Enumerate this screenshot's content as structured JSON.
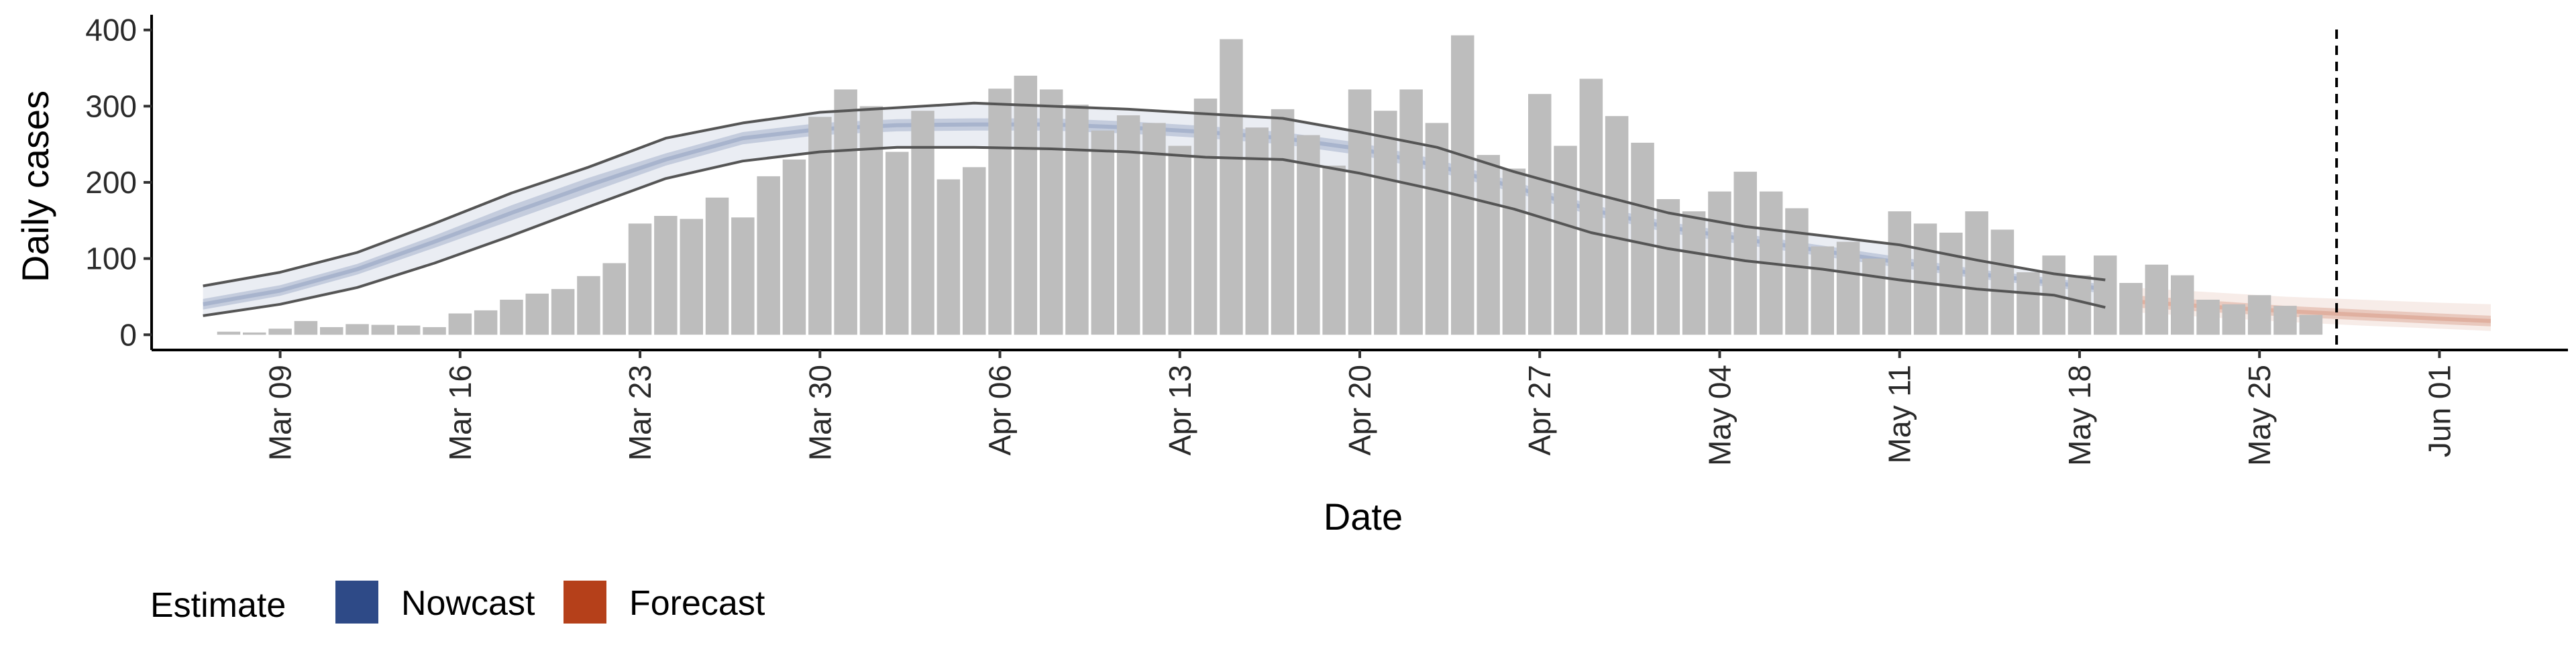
{
  "chart_data": {
    "type": "bar",
    "xlabel": "Date",
    "ylabel": "Daily cases",
    "ylim": [
      -20,
      420
    ],
    "yticks": [
      0,
      100,
      200,
      300,
      400
    ],
    "x_range": [
      "2020-03-04",
      "2020-06-06"
    ],
    "x_ticks": [
      {
        "date": "2020-03-09",
        "label": "Mar 09"
      },
      {
        "date": "2020-03-16",
        "label": "Mar 16"
      },
      {
        "date": "2020-03-23",
        "label": "Mar 23"
      },
      {
        "date": "2020-03-30",
        "label": "Mar 30"
      },
      {
        "date": "2020-04-06",
        "label": "Apr 06"
      },
      {
        "date": "2020-04-13",
        "label": "Apr 13"
      },
      {
        "date": "2020-04-20",
        "label": "Apr 20"
      },
      {
        "date": "2020-04-27",
        "label": "Apr 27"
      },
      {
        "date": "2020-05-04",
        "label": "May 04"
      },
      {
        "date": "2020-05-11",
        "label": "May 11"
      },
      {
        "date": "2020-05-18",
        "label": "May 18"
      },
      {
        "date": "2020-05-25",
        "label": "May 25"
      },
      {
        "date": "2020-06-01",
        "label": "Jun 01"
      }
    ],
    "grid": false,
    "bars": {
      "start_date": "2020-03-07",
      "color": "#bdbdbd",
      "values": [
        4,
        3,
        8,
        18,
        10,
        14,
        13,
        12,
        10,
        28,
        32,
        46,
        54,
        60,
        77,
        94,
        146,
        156,
        152,
        180,
        154,
        208,
        230,
        286,
        322,
        300,
        240,
        294,
        204,
        220,
        323,
        340,
        322,
        302,
        268,
        288,
        278,
        248,
        310,
        388,
        272,
        296,
        262,
        222,
        322,
        294,
        322,
        278,
        393,
        236,
        218,
        316,
        248,
        336,
        287,
        252,
        178,
        162,
        188,
        214,
        188,
        166,
        116,
        122,
        100,
        162,
        146,
        134,
        162,
        138,
        82,
        104,
        78,
        104,
        68,
        92,
        78,
        46,
        40,
        52,
        38,
        26
      ]
    },
    "vline_date": "2020-05-28",
    "series": [
      {
        "name": "Nowcast",
        "color": "#2e4a87",
        "dates": [
          "2020-03-06",
          "2020-03-09",
          "2020-03-12",
          "2020-03-15",
          "2020-03-18",
          "2020-03-21",
          "2020-03-24",
          "2020-03-27",
          "2020-03-30",
          "2020-04-02",
          "2020-04-05",
          "2020-04-08",
          "2020-04-11",
          "2020-04-14",
          "2020-04-17",
          "2020-04-20",
          "2020-04-23",
          "2020-04-26",
          "2020-04-29",
          "2020-05-02",
          "2020-05-05",
          "2020-05-08",
          "2020-05-11",
          "2020-05-14",
          "2020-05-17",
          "2020-05-19"
        ],
        "median": [
          40,
          58,
          86,
          122,
          160,
          196,
          230,
          258,
          270,
          275,
          276,
          276,
          272,
          266,
          258,
          244,
          222,
          194,
          164,
          141,
          125,
          110,
          95,
          80,
          68,
          60
        ],
        "inner_lower": [
          33,
          51,
          79,
          114,
          150,
          186,
          222,
          250,
          262,
          267,
          268,
          268,
          264,
          258,
          250,
          236,
          214,
          187,
          157,
          134,
          118,
          103,
          88,
          74,
          62,
          54
        ],
        "inner_upper": [
          47,
          65,
          93,
          130,
          170,
          206,
          238,
          266,
          278,
          283,
          284,
          284,
          280,
          274,
          266,
          252,
          230,
          201,
          171,
          148,
          132,
          117,
          102,
          86,
          74,
          66
        ],
        "outer_lower": [
          25,
          40,
          62,
          94,
          130,
          168,
          205,
          228,
          240,
          246,
          246,
          244,
          240,
          233,
          230,
          212,
          190,
          165,
          134,
          113,
          97,
          86,
          72,
          60,
          52,
          36
        ],
        "outer_upper": [
          64,
          82,
          108,
          146,
          186,
          220,
          258,
          278,
          292,
          298,
          304,
          300,
          296,
          290,
          284,
          266,
          246,
          214,
          186,
          160,
          142,
          130,
          118,
          98,
          80,
          72
        ]
      },
      {
        "name": "Forecast",
        "color": "#b5401a",
        "dates": [
          "2020-05-20",
          "2020-05-23",
          "2020-05-26",
          "2020-05-29",
          "2020-06-01",
          "2020-06-03"
        ],
        "median": [
          44,
          37,
          31,
          26,
          21,
          18
        ],
        "inner_lower": [
          36,
          30,
          24,
          19,
          14,
          11
        ],
        "inner_upper": [
          52,
          45,
          38,
          33,
          28,
          25
        ],
        "outer_lower": [
          30,
          23,
          17,
          12,
          8,
          5
        ],
        "outer_upper": [
          62,
          56,
          50,
          46,
          42,
          40
        ]
      }
    ],
    "legend": {
      "title": "Estimate",
      "placement": "bottom-left",
      "entries": [
        {
          "label": "Nowcast",
          "color": "#2e4a87"
        },
        {
          "label": "Forecast",
          "color": "#b5401a"
        }
      ]
    }
  }
}
